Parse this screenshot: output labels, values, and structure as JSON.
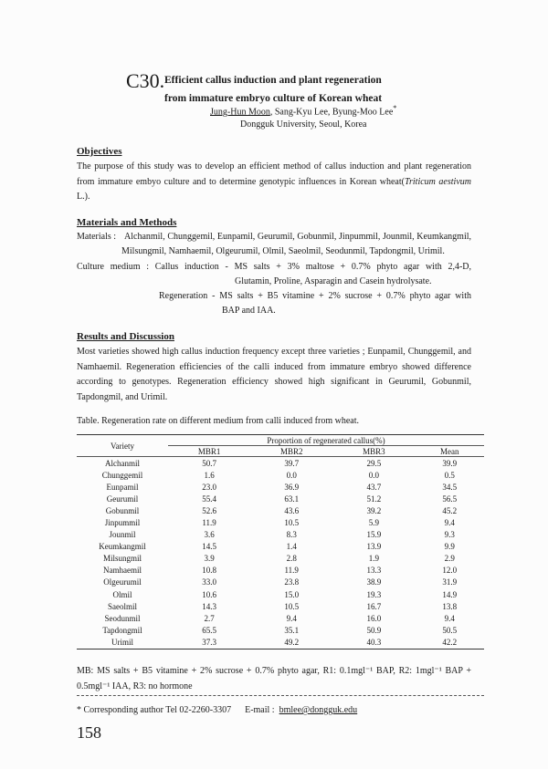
{
  "header": {
    "number": "C30.",
    "title_lines": [
      "Efficient callus induction and plant regeneration",
      "from immature embryo culture of Korean wheat"
    ],
    "authors": {
      "first": "Jung-Hun Moon",
      "rest": ", Sang-Kyu Lee, Byung-Moo Lee",
      "mark": "*"
    },
    "affiliation": "Dongguk University, Seoul, Korea"
  },
  "objectives": {
    "heading": "Objectives",
    "text": "The purpose of this study was to develop an efficient method of callus induction and plant regeneration from immature embyo culture and to determine genotypic influences in Korean wheat(",
    "species": "Triticum aestivum",
    "text_end": " L.)."
  },
  "methods": {
    "heading": "Materials and Methods",
    "materials_label": "Materials :",
    "materials_line1": "Alchanmil, Chunggemil, Eunpamil, Geurumil, Gobunmil, Jinpummil, Jounmil, Keumkangmil,",
    "materials_line2": "Milsungmil, Namhaemil, Olgeurumil, Olmil, Saeolmil, Seodunmil, Tapdongmil, Urimil.",
    "culture_line1": "Culture medium : Callus induction - MS salts + 3% maltose + 0.7% phyto agar with 2,4-D,",
    "culture_line2": "Glutamin, Proline, Asparagin and Casein hydrolysate.",
    "regen_line1": "Regeneration - MS salts + B5 vitamine + 2% sucrose + 0.7% phyto agar with",
    "regen_line2": "BAP and IAA."
  },
  "results": {
    "heading": "Results and Discussion",
    "text": "Most varieties showed high callus induction frequency except three varieties ; Eunpamil, Chunggemil, and Namhaemil. Regeneration efficiencies of the calli induced from immature embryo showed difference according to genotypes. Regeneration efficiency showed high significant in Geurumil, Gobunmil, Tapdongmil, and Urimil."
  },
  "table": {
    "caption": "Table. Regeneration rate on different medium from calli induced from wheat.",
    "variety_header": "Variety",
    "group_header": "Proportion of regenerated callus(%)",
    "columns": [
      "MBR1",
      "MBR2",
      "MBR3",
      "Mean"
    ],
    "rows": [
      [
        "Alchanmil",
        "50.7",
        "39.7",
        "29.5",
        "39.9"
      ],
      [
        "Chunggemil",
        "1.6",
        "0.0",
        "0.0",
        "0.5"
      ],
      [
        "Eunpamil",
        "23.0",
        "36.9",
        "43.7",
        "34.5"
      ],
      [
        "Geurumil",
        "55.4",
        "63.1",
        "51.2",
        "56.5"
      ],
      [
        "Gobunmil",
        "52.6",
        "43.6",
        "39.2",
        "45.2"
      ],
      [
        "Jinpummil",
        "11.9",
        "10.5",
        "5.9",
        "9.4"
      ],
      [
        "Jounmil",
        "3.6",
        "8.3",
        "15.9",
        "9.3"
      ],
      [
        "Keumkangmil",
        "14.5",
        "1.4",
        "13.9",
        "9.9"
      ],
      [
        "Milsungmil",
        "3.9",
        "2.8",
        "1.9",
        "2.9"
      ],
      [
        "Namhaemil",
        "10.8",
        "11.9",
        "13.3",
        "12.0"
      ],
      [
        "Olgeurumil",
        "33.0",
        "23.8",
        "38.9",
        "31.9"
      ],
      [
        "Olmil",
        "10.6",
        "15.0",
        "19.3",
        "14.9"
      ],
      [
        "Saeolmil",
        "14.3",
        "10.5",
        "16.7",
        "13.8"
      ],
      [
        "Seodunmil",
        "2.7",
        "9.4",
        "16.0",
        "9.4"
      ],
      [
        "Tapdongmil",
        "65.5",
        "35.1",
        "50.9",
        "50.5"
      ],
      [
        "Urimil",
        "37.3",
        "49.2",
        "40.3",
        "42.2"
      ]
    ],
    "footnote": "MB: MS salts + B5 vitamine + 2% sucrose + 0.7% phyto agar, R1: 0.1mgl⁻¹ BAP, R2: 1mgl⁻¹ BAP + 0.5mgl⁻¹ IAA, R3: no hormone"
  },
  "footer": {
    "corresponding": "* Corresponding author Tel 02-2260-3307",
    "email_label": "E-mail :",
    "email": "bmlee@dongguk.edu",
    "page_number": "158"
  }
}
